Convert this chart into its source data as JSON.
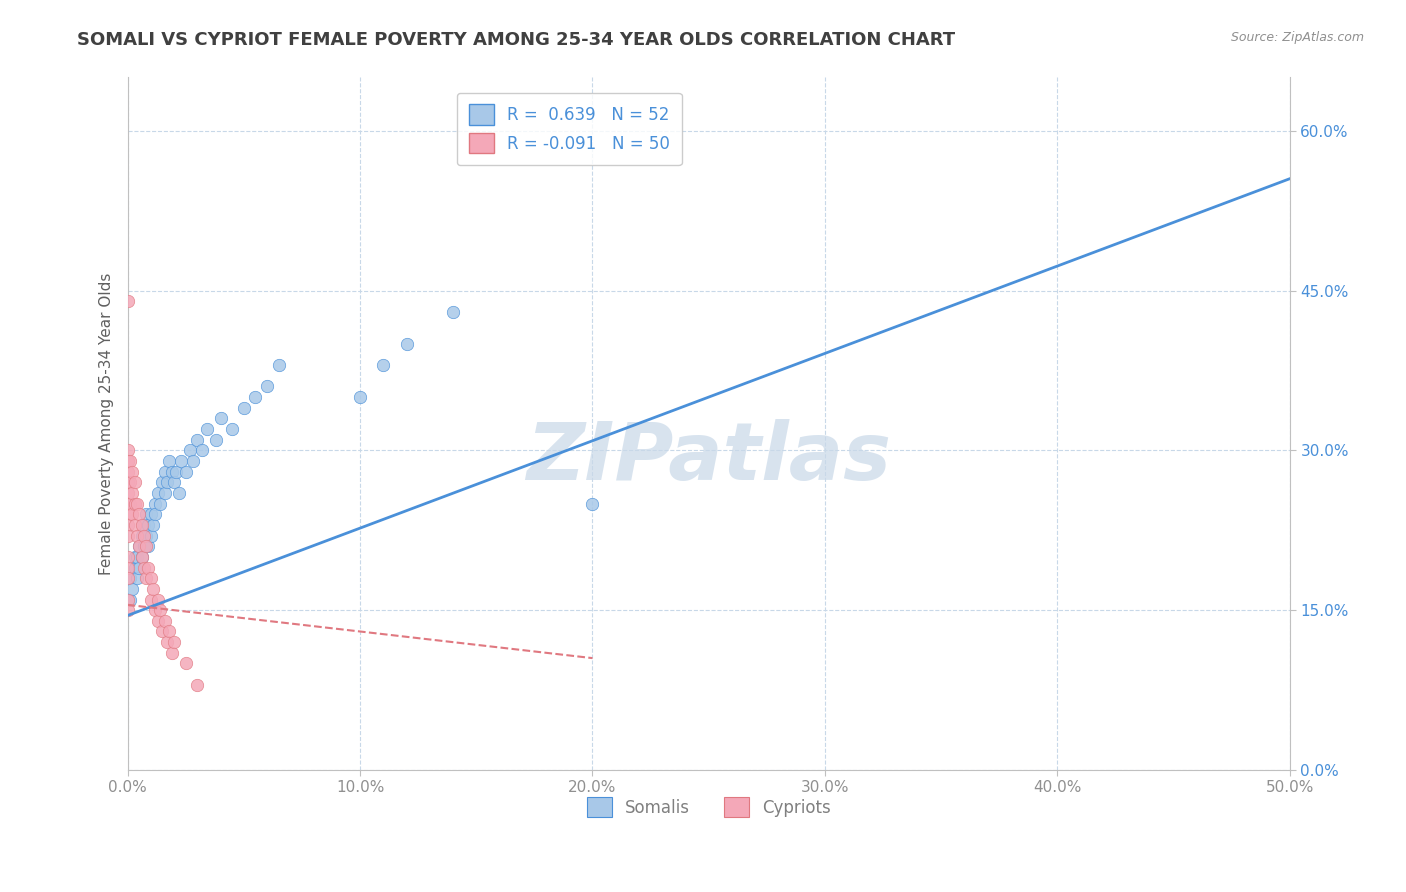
{
  "title": "SOMALI VS CYPRIOT FEMALE POVERTY AMONG 25-34 YEAR OLDS CORRELATION CHART",
  "source": "Source: ZipAtlas.com",
  "xlabel": "",
  "ylabel": "Female Poverty Among 25-34 Year Olds",
  "xlim": [
    0.0,
    0.5
  ],
  "ylim": [
    0.0,
    0.65
  ],
  "xticks": [
    0.0,
    0.1,
    0.2,
    0.3,
    0.4,
    0.5
  ],
  "xtick_labels": [
    "0.0%",
    "10.0%",
    "20.0%",
    "30.0%",
    "40.0%",
    "50.0%"
  ],
  "yticks": [
    0.0,
    0.15,
    0.3,
    0.45,
    0.6
  ],
  "ytick_labels": [
    "0.0%",
    "15.0%",
    "30.0%",
    "45.0%",
    "60.0%"
  ],
  "somali_R": 0.639,
  "somali_N": 52,
  "cypriot_R": -0.091,
  "cypriot_N": 50,
  "somali_color": "#a8c8e8",
  "cypriot_color": "#f4a8b8",
  "somali_line_color": "#4a90d9",
  "cypriot_line_color": "#e07880",
  "watermark": "ZIPatlas",
  "watermark_color": "#c8d8e8",
  "title_color": "#404040",
  "axis_label_color": "#606060",
  "tick_color": "#909090",
  "grid_color": "#c8d8e8",
  "somali_line_intercept": 0.145,
  "somali_line_slope": 0.82,
  "cypriot_line_intercept": 0.155,
  "cypriot_line_slope": -0.25,
  "somali_x": [
    0.001,
    0.001,
    0.002,
    0.003,
    0.003,
    0.004,
    0.004,
    0.005,
    0.005,
    0.006,
    0.006,
    0.007,
    0.007,
    0.008,
    0.008,
    0.009,
    0.009,
    0.01,
    0.01,
    0.011,
    0.012,
    0.012,
    0.013,
    0.014,
    0.015,
    0.016,
    0.016,
    0.017,
    0.018,
    0.019,
    0.02,
    0.021,
    0.022,
    0.023,
    0.025,
    0.027,
    0.028,
    0.03,
    0.032,
    0.034,
    0.038,
    0.04,
    0.045,
    0.05,
    0.055,
    0.06,
    0.065,
    0.1,
    0.11,
    0.12,
    0.14,
    0.2
  ],
  "somali_y": [
    0.16,
    0.18,
    0.17,
    0.19,
    0.2,
    0.18,
    0.2,
    0.19,
    0.21,
    0.2,
    0.22,
    0.21,
    0.23,
    0.22,
    0.24,
    0.21,
    0.23,
    0.22,
    0.24,
    0.23,
    0.25,
    0.24,
    0.26,
    0.25,
    0.27,
    0.26,
    0.28,
    0.27,
    0.29,
    0.28,
    0.27,
    0.28,
    0.26,
    0.29,
    0.28,
    0.3,
    0.29,
    0.31,
    0.3,
    0.32,
    0.31,
    0.33,
    0.32,
    0.34,
    0.35,
    0.36,
    0.38,
    0.35,
    0.38,
    0.4,
    0.43,
    0.25
  ],
  "cypriot_x": [
    0.0,
    0.0,
    0.0,
    0.0,
    0.0,
    0.0,
    0.0,
    0.0,
    0.0,
    0.0,
    0.0,
    0.0,
    0.0,
    0.0,
    0.0,
    0.001,
    0.001,
    0.001,
    0.002,
    0.002,
    0.002,
    0.003,
    0.003,
    0.003,
    0.004,
    0.004,
    0.005,
    0.005,
    0.006,
    0.006,
    0.007,
    0.007,
    0.008,
    0.008,
    0.009,
    0.01,
    0.01,
    0.011,
    0.012,
    0.013,
    0.013,
    0.014,
    0.015,
    0.016,
    0.017,
    0.018,
    0.019,
    0.02,
    0.025,
    0.03
  ],
  "cypriot_y": [
    0.44,
    0.3,
    0.29,
    0.28,
    0.27,
    0.26,
    0.25,
    0.24,
    0.23,
    0.22,
    0.2,
    0.19,
    0.18,
    0.16,
    0.15,
    0.29,
    0.27,
    0.25,
    0.28,
    0.26,
    0.24,
    0.27,
    0.25,
    0.23,
    0.25,
    0.22,
    0.24,
    0.21,
    0.23,
    0.2,
    0.22,
    0.19,
    0.21,
    0.18,
    0.19,
    0.18,
    0.16,
    0.17,
    0.15,
    0.16,
    0.14,
    0.15,
    0.13,
    0.14,
    0.12,
    0.13,
    0.11,
    0.12,
    0.1,
    0.08
  ]
}
